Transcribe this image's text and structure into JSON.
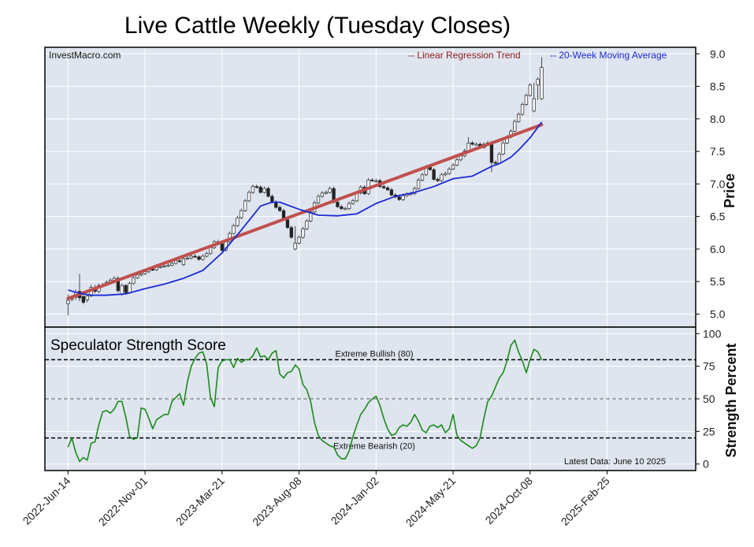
{
  "title": "Live Cattle Weekly (Tuesday Closes)",
  "source": "InvestMacro.com",
  "legend": {
    "regression": "-- Linear Regression Trend",
    "moving_average": "-- 20-Week Moving Average"
  },
  "colors": {
    "background": "#dfe5ef",
    "grid": "#ffffff",
    "regression": "#c0504d",
    "regression_text": "#8b1a1a",
    "moving_average": "#1a2ad6",
    "strength": "#1a8a1a",
    "candle_up": "#ffffff",
    "candle_down": "#222222"
  },
  "footer_note": "Latest Data: June 10 2025",
  "chart_data": [
    {
      "type": "candlestick",
      "title": "Live Cattle Weekly (Tuesday Closes)",
      "ylabel": "Price",
      "ylim": [
        4.8,
        9.1
      ],
      "y_ticks": [
        "5.0",
        "5.5",
        "6.0",
        "6.5",
        "7.0",
        "7.5",
        "8.0",
        "8.5",
        "9.0"
      ],
      "x_ticks": [
        "2022-Jun-14",
        "2022-Nov-01",
        "2023-Mar-21",
        "2023-Aug-08",
        "2024-Jan-02",
        "2024-May-21",
        "2024-Oct-08",
        "2025-Feb-25"
      ],
      "xlim": [
        -6,
        163
      ],
      "grid": true,
      "legend_position": "top-right",
      "close": [
        5.21,
        5.24,
        5.33,
        5.25,
        5.18,
        5.28,
        5.41,
        5.35,
        5.44,
        5.45,
        5.49,
        5.52,
        5.55,
        5.36,
        5.44,
        5.33,
        5.47,
        5.56,
        5.6,
        5.62,
        5.65,
        5.69,
        5.68,
        5.72,
        5.73,
        5.74,
        5.75,
        5.78,
        5.82,
        5.81,
        5.85,
        5.86,
        5.89,
        5.88,
        5.84,
        5.89,
        5.93,
        6.02,
        6.11,
        6.08,
        5.98,
        6.11,
        6.24,
        6.36,
        6.48,
        6.59,
        6.74,
        6.87,
        6.96,
        6.95,
        6.87,
        6.93,
        6.81,
        6.72,
        6.64,
        6.59,
        6.45,
        6.33,
        6.18,
        6.09,
        6.18,
        6.31,
        6.43,
        6.57,
        6.71,
        6.81,
        6.86,
        6.87,
        6.93,
        6.72,
        6.65,
        6.62,
        6.62,
        6.7,
        6.74,
        6.86,
        6.95,
        6.85,
        7.06,
        7.05,
        7.05,
        6.96,
        6.94,
        6.91,
        6.83,
        6.8,
        6.76,
        6.82,
        6.84,
        6.85,
        6.93,
        7.06,
        7.14,
        7.26,
        7.22,
        7.07,
        7.05,
        7.14,
        7.16,
        7.23,
        7.29,
        7.37,
        7.43,
        7.51,
        7.63,
        7.61,
        7.61,
        7.56,
        7.61,
        7.63,
        7.33,
        7.32,
        7.46,
        7.63,
        7.72,
        7.81,
        7.96,
        8.07,
        8.22,
        8.36,
        8.52,
        8.31,
        8.61,
        8.79
      ],
      "open": [
        5.16,
        5.23,
        5.26,
        5.35,
        5.27,
        5.22,
        5.28,
        5.4,
        5.35,
        5.44,
        5.45,
        5.49,
        5.52,
        5.55,
        5.3,
        5.44,
        5.33,
        5.47,
        5.56,
        5.6,
        5.62,
        5.65,
        5.69,
        5.68,
        5.72,
        5.73,
        5.74,
        5.75,
        5.78,
        5.82,
        5.76,
        5.85,
        5.86,
        5.89,
        5.88,
        5.84,
        5.89,
        5.93,
        6.02,
        6.11,
        6.08,
        5.98,
        6.11,
        6.24,
        6.36,
        6.48,
        6.59,
        6.74,
        6.87,
        6.96,
        6.95,
        6.87,
        6.93,
        6.81,
        6.72,
        6.64,
        6.59,
        6.45,
        6.33,
        6.0,
        6.09,
        6.18,
        6.31,
        6.43,
        6.57,
        6.71,
        6.81,
        6.86,
        6.87,
        6.93,
        6.72,
        6.65,
        6.62,
        6.62,
        6.7,
        6.74,
        6.86,
        6.95,
        6.85,
        7.06,
        7.05,
        7.05,
        6.96,
        6.94,
        6.91,
        6.83,
        6.8,
        6.76,
        6.82,
        6.84,
        6.85,
        6.93,
        7.06,
        7.14,
        7.26,
        7.22,
        7.07,
        7.05,
        7.14,
        7.16,
        7.23,
        7.29,
        7.37,
        7.43,
        7.51,
        7.63,
        7.61,
        7.61,
        7.56,
        7.61,
        7.63,
        7.33,
        7.32,
        7.46,
        7.63,
        7.72,
        7.81,
        7.96,
        8.07,
        8.22,
        8.36,
        8.12,
        8.52,
        8.31
      ],
      "high": [
        5.3,
        5.28,
        5.38,
        5.62,
        5.31,
        5.3,
        5.45,
        5.45,
        5.47,
        5.48,
        5.52,
        5.55,
        5.58,
        5.58,
        5.47,
        5.46,
        5.5,
        5.59,
        5.63,
        5.65,
        5.68,
        5.72,
        5.72,
        5.75,
        5.76,
        5.77,
        5.78,
        5.81,
        5.85,
        5.85,
        5.88,
        5.89,
        5.92,
        5.92,
        5.9,
        5.92,
        5.96,
        6.05,
        6.14,
        6.14,
        6.11,
        6.14,
        6.27,
        6.39,
        6.51,
        6.62,
        6.77,
        6.9,
        6.99,
        6.99,
        6.98,
        6.96,
        6.96,
        6.84,
        6.75,
        6.67,
        6.62,
        6.48,
        6.36,
        6.35,
        6.21,
        6.34,
        6.46,
        6.6,
        6.74,
        6.84,
        6.89,
        6.9,
        6.96,
        6.96,
        6.75,
        6.68,
        6.65,
        6.73,
        6.77,
        6.89,
        6.98,
        6.98,
        7.09,
        7.09,
        7.08,
        7.08,
        6.99,
        6.97,
        6.94,
        6.86,
        6.83,
        6.85,
        6.87,
        6.88,
        6.96,
        7.09,
        7.17,
        7.29,
        7.29,
        7.25,
        7.1,
        7.17,
        7.19,
        7.26,
        7.32,
        7.4,
        7.46,
        7.54,
        7.72,
        7.66,
        7.64,
        7.64,
        7.64,
        7.66,
        7.66,
        7.36,
        7.49,
        7.66,
        7.75,
        7.84,
        7.99,
        8.1,
        8.25,
        8.39,
        8.55,
        8.55,
        8.64,
        8.95
      ],
      "low": [
        4.98,
        5.2,
        5.22,
        5.2,
        5.15,
        5.18,
        5.26,
        5.32,
        5.32,
        5.42,
        5.43,
        5.47,
        5.5,
        5.33,
        5.28,
        5.3,
        5.31,
        5.45,
        5.54,
        5.58,
        5.6,
        5.63,
        5.66,
        5.66,
        5.7,
        5.71,
        5.72,
        5.73,
        5.76,
        5.79,
        5.74,
        5.83,
        5.84,
        5.86,
        5.82,
        5.82,
        5.87,
        5.91,
        6.0,
        6.06,
        5.96,
        5.96,
        6.09,
        6.22,
        6.34,
        6.46,
        6.57,
        6.72,
        6.85,
        6.93,
        6.85,
        6.85,
        6.79,
        6.7,
        6.62,
        6.57,
        6.43,
        6.31,
        6.16,
        5.98,
        6.07,
        6.16,
        6.29,
        6.41,
        6.55,
        6.69,
        6.79,
        6.84,
        6.85,
        6.7,
        6.63,
        6.6,
        6.6,
        6.6,
        6.68,
        6.72,
        6.84,
        6.83,
        6.83,
        7.03,
        7.02,
        6.94,
        6.92,
        6.89,
        6.81,
        6.78,
        6.74,
        6.74,
        6.8,
        6.82,
        6.83,
        6.91,
        7.04,
        7.12,
        7.2,
        7.05,
        7.03,
        7.03,
        7.12,
        7.14,
        7.21,
        7.27,
        7.35,
        7.41,
        7.49,
        7.59,
        7.59,
        7.54,
        7.54,
        7.59,
        7.18,
        7.3,
        7.3,
        7.44,
        7.61,
        7.7,
        7.79,
        7.94,
        8.05,
        8.2,
        8.34,
        8.1,
        8.29,
        8.29
      ],
      "series": [
        {
          "name": "20-Week Moving Average",
          "x": [
            0,
            3,
            6,
            10,
            15,
            20,
            25,
            30,
            35,
            40,
            45,
            50,
            53,
            55,
            60,
            65,
            70,
            75,
            80,
            85,
            90,
            95,
            100,
            105,
            108,
            110,
            112,
            115,
            117,
            120,
            123
          ],
          "values": [
            5.37,
            5.32,
            5.29,
            5.29,
            5.31,
            5.39,
            5.46,
            5.55,
            5.67,
            5.94,
            6.29,
            6.66,
            6.72,
            6.72,
            6.61,
            6.52,
            6.51,
            6.54,
            6.7,
            6.81,
            6.87,
            6.96,
            7.08,
            7.12,
            7.21,
            7.27,
            7.31,
            7.41,
            7.52,
            7.71,
            7.95
          ]
        },
        {
          "name": "Linear Regression Trend",
          "x": [
            0,
            123
          ],
          "values": [
            5.24,
            7.91
          ]
        }
      ]
    },
    {
      "type": "line",
      "title": "Speculator Strength Score",
      "ylabel": "Strength Percent",
      "ylim": [
        -5,
        105
      ],
      "y_ticks": [
        "0",
        "25",
        "50",
        "75",
        "100"
      ],
      "grid": true,
      "reference_lines": [
        {
          "value": 80,
          "label": "Extreme Bullish (80)"
        },
        {
          "value": 50,
          "label": ""
        },
        {
          "value": 20,
          "label": "Extreme Bearish (20)"
        }
      ],
      "series": [
        {
          "name": "Speculator Strength Score",
          "x": [
            0,
            1,
            2,
            3,
            4,
            5,
            6,
            7,
            8,
            9,
            10,
            11,
            12,
            13,
            14,
            15,
            16,
            17,
            18,
            19,
            20,
            21,
            22,
            23,
            24,
            25,
            26,
            27,
            28,
            29,
            30,
            31,
            32,
            33,
            34,
            35,
            36,
            37,
            38,
            39,
            40,
            41,
            42,
            43,
            44,
            45,
            46,
            47,
            48,
            49,
            50,
            51,
            52,
            53,
            54,
            55,
            56,
            57,
            58,
            59,
            60,
            61,
            62,
            63,
            64,
            65,
            66,
            67,
            68,
            69,
            70,
            71,
            72,
            73,
            74,
            75,
            76,
            77,
            78,
            79,
            80,
            81,
            82,
            83,
            84,
            85,
            86,
            87,
            88,
            89,
            90,
            91,
            92,
            93,
            94,
            95,
            96,
            97,
            98,
            99,
            100,
            101,
            102,
            103,
            104,
            105,
            106,
            107,
            108,
            109,
            110,
            111,
            112,
            113,
            114,
            115,
            116,
            117,
            118,
            119,
            120,
            121,
            122,
            123
          ],
          "values": [
            13,
            20,
            9,
            2,
            5,
            3,
            16,
            17,
            30,
            40,
            41,
            39,
            42,
            48,
            48,
            36,
            21,
            19,
            20,
            43,
            42,
            35,
            27,
            34,
            36,
            38,
            38,
            48,
            51,
            54,
            45,
            63,
            75,
            81,
            85,
            86,
            77,
            51,
            44,
            74,
            79,
            80,
            80,
            74,
            81,
            78,
            80,
            80,
            83,
            89,
            82,
            83,
            80,
            85,
            87,
            69,
            66,
            70,
            71,
            76,
            73,
            61,
            57,
            48,
            32,
            22,
            18,
            16,
            14,
            13,
            7,
            4,
            4,
            10,
            21,
            30,
            38,
            42,
            47,
            50,
            52,
            45,
            35,
            27,
            22,
            23,
            28,
            30,
            29,
            32,
            38,
            33,
            26,
            24,
            29,
            30,
            28,
            30,
            24,
            27,
            38,
            22,
            18,
            16,
            14,
            12,
            14,
            20,
            35,
            48,
            52,
            59,
            66,
            70,
            79,
            91,
            95,
            86,
            79,
            70,
            80,
            88,
            86,
            80
          ]
        }
      ],
      "note": "Latest Data: June 10 2025"
    }
  ]
}
